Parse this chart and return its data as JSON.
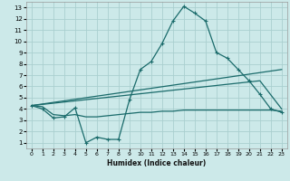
{
  "xlabel": "Humidex (Indice chaleur)",
  "bg_color": "#cce9e9",
  "grid_color": "#aacfcf",
  "line_color": "#1a6b6b",
  "xlim": [
    -0.5,
    23.5
  ],
  "ylim": [
    0.5,
    13.5
  ],
  "xticks": [
    0,
    1,
    2,
    3,
    4,
    5,
    6,
    7,
    8,
    9,
    10,
    11,
    12,
    13,
    14,
    15,
    16,
    17,
    18,
    19,
    20,
    21,
    22,
    23
  ],
  "yticks": [
    1,
    2,
    3,
    4,
    5,
    6,
    7,
    8,
    9,
    10,
    11,
    12,
    13
  ],
  "line1_x": [
    0,
    1,
    2,
    3,
    4,
    5,
    6,
    7,
    8,
    9,
    10,
    11,
    12,
    13,
    14,
    15,
    16,
    17,
    18,
    19,
    20,
    21,
    22,
    23
  ],
  "line1_y": [
    4.3,
    4.0,
    3.2,
    3.3,
    4.1,
    1.0,
    1.5,
    1.3,
    1.3,
    4.8,
    7.5,
    8.2,
    9.8,
    11.8,
    13.1,
    12.5,
    11.8,
    9.0,
    8.5,
    7.5,
    6.5,
    5.3,
    4.0,
    3.7
  ],
  "line2_x": [
    0,
    23
  ],
  "line2_y": [
    4.3,
    7.5
  ],
  "line3_x": [
    0,
    21,
    23
  ],
  "line3_y": [
    4.3,
    6.5,
    4.0
  ],
  "line4_x": [
    0,
    1,
    2,
    3,
    4,
    5,
    6,
    7,
    8,
    9,
    10,
    11,
    12,
    13,
    14,
    15,
    16,
    17,
    18,
    19,
    20,
    21,
    22,
    23
  ],
  "line4_y": [
    4.3,
    4.2,
    3.5,
    3.4,
    3.5,
    3.3,
    3.3,
    3.4,
    3.5,
    3.6,
    3.7,
    3.7,
    3.8,
    3.8,
    3.9,
    3.9,
    3.9,
    3.9,
    3.9,
    3.9,
    3.9,
    3.9,
    3.9,
    3.8
  ]
}
